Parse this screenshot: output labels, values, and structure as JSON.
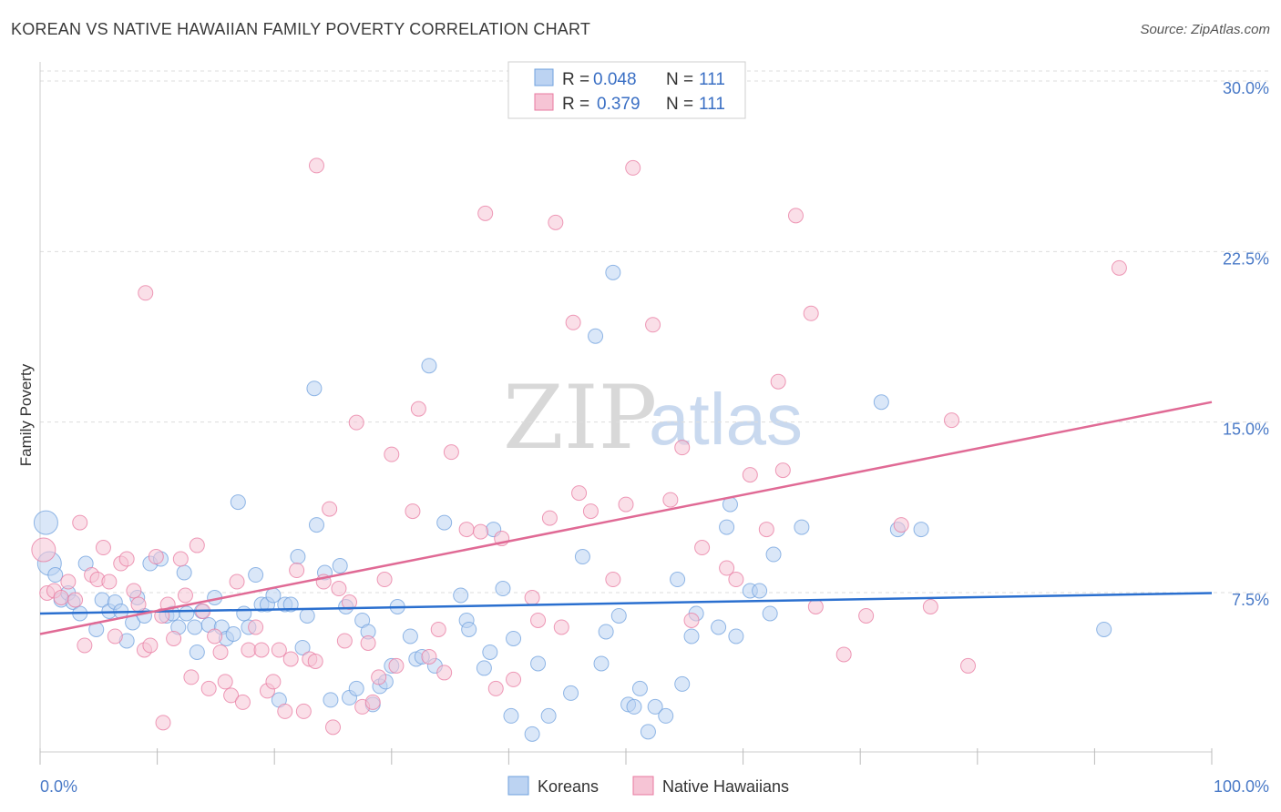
{
  "title": "KOREAN VS NATIVE HAWAIIAN FAMILY POVERTY CORRELATION CHART",
  "source": "Source: ZipAtlas.com",
  "colors": {
    "koreans": "#6fa0de",
    "koreans_fill": "#bcd3f2",
    "hawaiians": "#e87aa0",
    "hawaiians_fill": "#f6c4d5",
    "koreans_line": "#2a6fcf",
    "hawaiians_line": "#e06a95",
    "grid": "#dddddd",
    "tick_text": "#4a7ac7"
  },
  "legend": {
    "rows": [
      {
        "r_label": "R = ",
        "r_value": "0.048",
        "n_label": "N = ",
        "n_value": "111"
      },
      {
        "r_label": "R = ",
        "r_value": "0.379",
        "n_label": "N = ",
        "n_value": "111"
      }
    ]
  },
  "watermark": {
    "zip": "ZIP",
    "atlas": "atlas"
  },
  "chart_data": {
    "type": "scatter",
    "title": "KOREAN VS NATIVE HAWAIIAN FAMILY POVERTY CORRELATION CHART",
    "xlabel": "",
    "ylabel": "Family Poverty",
    "xlim": [
      0,
      100
    ],
    "ylim": [
      0,
      31
    ],
    "x_tick_labels": [
      "0.0%",
      "100.0%"
    ],
    "y_ticks": [
      7.5,
      15.0,
      22.5,
      30.0
    ],
    "y_tick_labels": [
      "7.5%",
      "15.0%",
      "22.5%",
      "30.0%"
    ],
    "grid": true,
    "legend_position": "top-center",
    "series": [
      {
        "name": "Koreans",
        "trend": {
          "x": [
            0,
            100
          ],
          "y": [
            6.9,
            7.8
          ]
        },
        "points": [
          {
            "x": 0.5,
            "y": 10.9,
            "big": true
          },
          {
            "x": 0.8,
            "y": 9.1,
            "big": true
          },
          {
            "x": 1.3,
            "y": 8.6
          },
          {
            "x": 1.8,
            "y": 7.5
          },
          {
            "x": 2.4,
            "y": 7.8
          },
          {
            "x": 2.8,
            "y": 7.4
          },
          {
            "x": 3.4,
            "y": 6.9
          },
          {
            "x": 3.9,
            "y": 9.1
          },
          {
            "x": 4.8,
            "y": 6.2
          },
          {
            "x": 5.3,
            "y": 7.5
          },
          {
            "x": 5.9,
            "y": 7.0
          },
          {
            "x": 6.4,
            "y": 7.4
          },
          {
            "x": 6.9,
            "y": 7.0
          },
          {
            "x": 7.4,
            "y": 5.7
          },
          {
            "x": 7.9,
            "y": 6.5
          },
          {
            "x": 8.3,
            "y": 7.6
          },
          {
            "x": 8.9,
            "y": 6.8
          },
          {
            "x": 9.4,
            "y": 9.1
          },
          {
            "x": 10.3,
            "y": 9.3
          },
          {
            "x": 10.8,
            "y": 6.8
          },
          {
            "x": 11.3,
            "y": 6.9
          },
          {
            "x": 11.8,
            "y": 6.3
          },
          {
            "x": 12.3,
            "y": 8.7
          },
          {
            "x": 12.5,
            "y": 6.9
          },
          {
            "x": 13.2,
            "y": 6.3
          },
          {
            "x": 13.4,
            "y": 5.2
          },
          {
            "x": 13.8,
            "y": 7.0
          },
          {
            "x": 14.4,
            "y": 6.4
          },
          {
            "x": 14.9,
            "y": 7.6
          },
          {
            "x": 15.5,
            "y": 6.3
          },
          {
            "x": 15.9,
            "y": 5.8
          },
          {
            "x": 16.5,
            "y": 6.0
          },
          {
            "x": 16.9,
            "y": 11.8
          },
          {
            "x": 17.4,
            "y": 6.9
          },
          {
            "x": 17.8,
            "y": 6.3
          },
          {
            "x": 18.4,
            "y": 8.6
          },
          {
            "x": 18.9,
            "y": 7.3
          },
          {
            "x": 19.4,
            "y": 7.3
          },
          {
            "x": 19.9,
            "y": 7.7
          },
          {
            "x": 20.4,
            "y": 3.1
          },
          {
            "x": 20.9,
            "y": 7.3
          },
          {
            "x": 21.4,
            "y": 7.3
          },
          {
            "x": 22.0,
            "y": 9.4
          },
          {
            "x": 22.4,
            "y": 5.4
          },
          {
            "x": 22.8,
            "y": 6.8
          },
          {
            "x": 23.4,
            "y": 16.8
          },
          {
            "x": 23.6,
            "y": 10.8
          },
          {
            "x": 24.3,
            "y": 8.7
          },
          {
            "x": 24.8,
            "y": 3.1
          },
          {
            "x": 25.6,
            "y": 9.0
          },
          {
            "x": 26.1,
            "y": 7.2
          },
          {
            "x": 26.4,
            "y": 3.2
          },
          {
            "x": 27.0,
            "y": 3.6
          },
          {
            "x": 27.5,
            "y": 6.6
          },
          {
            "x": 28.0,
            "y": 6.1
          },
          {
            "x": 28.4,
            "y": 2.9
          },
          {
            "x": 29.0,
            "y": 3.7
          },
          {
            "x": 29.5,
            "y": 3.9
          },
          {
            "x": 30.0,
            "y": 4.6
          },
          {
            "x": 30.5,
            "y": 7.2
          },
          {
            "x": 31.6,
            "y": 5.9
          },
          {
            "x": 32.1,
            "y": 4.9
          },
          {
            "x": 32.6,
            "y": 5.0
          },
          {
            "x": 33.2,
            "y": 17.8
          },
          {
            "x": 33.7,
            "y": 4.6
          },
          {
            "x": 34.5,
            "y": 10.9
          },
          {
            "x": 35.9,
            "y": 7.7
          },
          {
            "x": 36.4,
            "y": 6.6
          },
          {
            "x": 36.6,
            "y": 6.2
          },
          {
            "x": 37.9,
            "y": 4.5
          },
          {
            "x": 38.4,
            "y": 5.2
          },
          {
            "x": 38.7,
            "y": 10.6
          },
          {
            "x": 39.5,
            "y": 8.0
          },
          {
            "x": 40.2,
            "y": 2.4
          },
          {
            "x": 40.4,
            "y": 5.8
          },
          {
            "x": 42.0,
            "y": 1.6
          },
          {
            "x": 42.5,
            "y": 4.7
          },
          {
            "x": 43.4,
            "y": 2.4
          },
          {
            "x": 45.3,
            "y": 3.4
          },
          {
            "x": 46.3,
            "y": 9.4
          },
          {
            "x": 47.4,
            "y": 19.1
          },
          {
            "x": 47.9,
            "y": 4.7
          },
          {
            "x": 48.3,
            "y": 6.1
          },
          {
            "x": 48.9,
            "y": 21.9
          },
          {
            "x": 49.4,
            "y": 6.8
          },
          {
            "x": 50.2,
            "y": 2.9
          },
          {
            "x": 50.7,
            "y": 2.8
          },
          {
            "x": 51.2,
            "y": 3.6
          },
          {
            "x": 51.9,
            "y": 1.7
          },
          {
            "x": 52.5,
            "y": 2.8
          },
          {
            "x": 53.4,
            "y": 2.4
          },
          {
            "x": 54.4,
            "y": 8.4
          },
          {
            "x": 54.8,
            "y": 3.8
          },
          {
            "x": 55.6,
            "y": 5.9
          },
          {
            "x": 56.0,
            "y": 6.9
          },
          {
            "x": 57.9,
            "y": 6.3
          },
          {
            "x": 58.6,
            "y": 10.7
          },
          {
            "x": 58.9,
            "y": 11.7
          },
          {
            "x": 59.4,
            "y": 5.9
          },
          {
            "x": 60.6,
            "y": 7.9
          },
          {
            "x": 61.4,
            "y": 7.9
          },
          {
            "x": 62.3,
            "y": 6.9
          },
          {
            "x": 62.6,
            "y": 9.5
          },
          {
            "x": 65.0,
            "y": 10.7
          },
          {
            "x": 71.8,
            "y": 16.2
          },
          {
            "x": 73.2,
            "y": 10.6
          },
          {
            "x": 75.2,
            "y": 10.6
          },
          {
            "x": 90.8,
            "y": 6.2
          }
        ]
      },
      {
        "name": "Native Hawaiians",
        "trend": {
          "x": [
            0,
            100
          ],
          "y": [
            6.0,
            16.2
          ]
        },
        "points": [
          {
            "x": 0.3,
            "y": 9.7,
            "big": true
          },
          {
            "x": 0.6,
            "y": 7.8
          },
          {
            "x": 1.2,
            "y": 7.9
          },
          {
            "x": 1.8,
            "y": 7.6
          },
          {
            "x": 2.4,
            "y": 8.3
          },
          {
            "x": 3.0,
            "y": 7.5
          },
          {
            "x": 3.4,
            "y": 10.9
          },
          {
            "x": 3.8,
            "y": 5.5
          },
          {
            "x": 4.4,
            "y": 8.6
          },
          {
            "x": 4.9,
            "y": 8.4
          },
          {
            "x": 5.4,
            "y": 9.8
          },
          {
            "x": 5.9,
            "y": 8.3
          },
          {
            "x": 6.4,
            "y": 5.9
          },
          {
            "x": 6.9,
            "y": 9.1
          },
          {
            "x": 7.4,
            "y": 9.3
          },
          {
            "x": 8.0,
            "y": 7.9
          },
          {
            "x": 8.4,
            "y": 7.3
          },
          {
            "x": 8.9,
            "y": 5.3
          },
          {
            "x": 9.0,
            "y": 21.0
          },
          {
            "x": 9.4,
            "y": 5.5
          },
          {
            "x": 9.9,
            "y": 9.4
          },
          {
            "x": 10.4,
            "y": 6.8
          },
          {
            "x": 10.5,
            "y": 2.1
          },
          {
            "x": 10.9,
            "y": 7.3
          },
          {
            "x": 11.4,
            "y": 5.8
          },
          {
            "x": 12.0,
            "y": 9.3
          },
          {
            "x": 12.4,
            "y": 7.7
          },
          {
            "x": 12.9,
            "y": 4.1
          },
          {
            "x": 13.4,
            "y": 9.9
          },
          {
            "x": 13.9,
            "y": 7.0
          },
          {
            "x": 14.4,
            "y": 3.6
          },
          {
            "x": 14.9,
            "y": 5.9
          },
          {
            "x": 15.4,
            "y": 5.2
          },
          {
            "x": 15.8,
            "y": 3.9
          },
          {
            "x": 16.3,
            "y": 3.3
          },
          {
            "x": 16.8,
            "y": 8.3
          },
          {
            "x": 17.3,
            "y": 3.0
          },
          {
            "x": 17.8,
            "y": 5.3
          },
          {
            "x": 18.4,
            "y": 6.3
          },
          {
            "x": 18.9,
            "y": 5.3
          },
          {
            "x": 19.4,
            "y": 3.5
          },
          {
            "x": 19.9,
            "y": 3.9
          },
          {
            "x": 20.4,
            "y": 5.3
          },
          {
            "x": 20.9,
            "y": 2.6
          },
          {
            "x": 21.4,
            "y": 4.9
          },
          {
            "x": 21.9,
            "y": 8.8
          },
          {
            "x": 22.5,
            "y": 2.6
          },
          {
            "x": 23.0,
            "y": 4.9
          },
          {
            "x": 23.5,
            "y": 4.8
          },
          {
            "x": 23.6,
            "y": 26.6
          },
          {
            "x": 24.2,
            "y": 8.3
          },
          {
            "x": 24.7,
            "y": 11.5
          },
          {
            "x": 25.0,
            "y": 1.9
          },
          {
            "x": 25.5,
            "y": 8.0
          },
          {
            "x": 26.0,
            "y": 5.7
          },
          {
            "x": 26.4,
            "y": 7.4
          },
          {
            "x": 27.0,
            "y": 15.3
          },
          {
            "x": 27.5,
            "y": 2.8
          },
          {
            "x": 28.0,
            "y": 5.6
          },
          {
            "x": 28.4,
            "y": 3.0
          },
          {
            "x": 28.9,
            "y": 4.1
          },
          {
            "x": 29.4,
            "y": 8.4
          },
          {
            "x": 30.0,
            "y": 13.9
          },
          {
            "x": 30.4,
            "y": 4.6
          },
          {
            "x": 31.8,
            "y": 11.4
          },
          {
            "x": 32.3,
            "y": 15.9
          },
          {
            "x": 33.2,
            "y": 5.0
          },
          {
            "x": 34.0,
            "y": 6.2
          },
          {
            "x": 34.5,
            "y": 4.3
          },
          {
            "x": 35.1,
            "y": 14.0
          },
          {
            "x": 36.4,
            "y": 10.6
          },
          {
            "x": 37.6,
            "y": 10.5
          },
          {
            "x": 38.0,
            "y": 24.5
          },
          {
            "x": 38.9,
            "y": 3.6
          },
          {
            "x": 39.4,
            "y": 10.2
          },
          {
            "x": 40.4,
            "y": 4.0
          },
          {
            "x": 42.0,
            "y": 7.6
          },
          {
            "x": 42.5,
            "y": 6.6
          },
          {
            "x": 43.5,
            "y": 11.1
          },
          {
            "x": 44.0,
            "y": 24.1
          },
          {
            "x": 44.5,
            "y": 6.3
          },
          {
            "x": 45.5,
            "y": 19.7
          },
          {
            "x": 46.0,
            "y": 12.2
          },
          {
            "x": 47.0,
            "y": 11.4
          },
          {
            "x": 48.9,
            "y": 8.4
          },
          {
            "x": 50.0,
            "y": 11.7
          },
          {
            "x": 50.6,
            "y": 26.5
          },
          {
            "x": 52.3,
            "y": 19.6
          },
          {
            "x": 53.8,
            "y": 11.9
          },
          {
            "x": 54.8,
            "y": 14.2
          },
          {
            "x": 55.6,
            "y": 6.6
          },
          {
            "x": 56.5,
            "y": 9.8
          },
          {
            "x": 58.6,
            "y": 8.9
          },
          {
            "x": 59.4,
            "y": 8.4
          },
          {
            "x": 60.6,
            "y": 13.0
          },
          {
            "x": 62.0,
            "y": 10.6
          },
          {
            "x": 63.0,
            "y": 17.1
          },
          {
            "x": 63.4,
            "y": 13.2
          },
          {
            "x": 64.5,
            "y": 24.4
          },
          {
            "x": 65.8,
            "y": 20.1
          },
          {
            "x": 66.2,
            "y": 7.2
          },
          {
            "x": 68.6,
            "y": 5.1
          },
          {
            "x": 70.5,
            "y": 6.8
          },
          {
            "x": 73.5,
            "y": 10.8
          },
          {
            "x": 76.0,
            "y": 7.2
          },
          {
            "x": 77.8,
            "y": 15.4
          },
          {
            "x": 79.2,
            "y": 4.6
          },
          {
            "x": 92.1,
            "y": 22.1
          }
        ]
      }
    ]
  },
  "bottom_legend": {
    "koreans": "Koreans",
    "hawaiians": "Native Hawaiians"
  }
}
